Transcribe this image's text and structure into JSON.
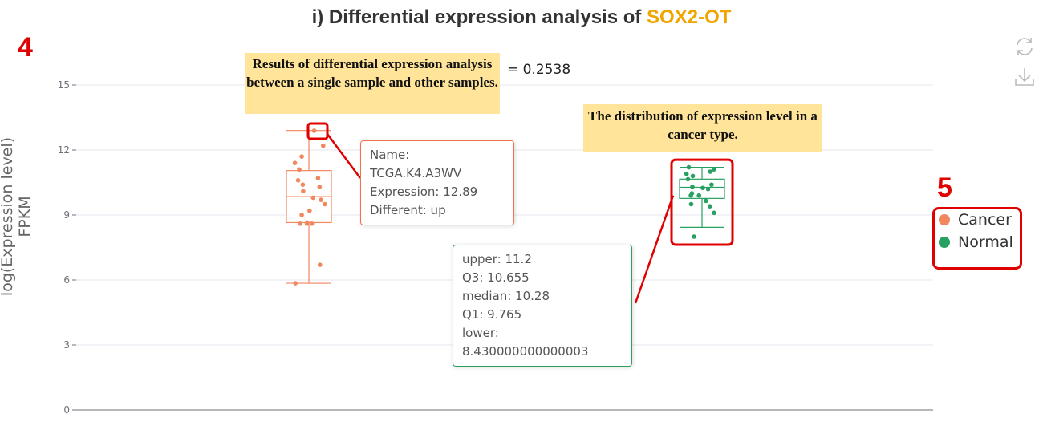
{
  "title": {
    "prefix": "i) Differential expression analysis of ",
    "gene": "SOX2-OT"
  },
  "annotations": {
    "num4": "4",
    "num5": "5",
    "box1": "Results of  differential expression analysis between a single sample and other samples.",
    "box2": "The distribution of expression level in a cancer type."
  },
  "pvalue_text": "= 0.2538",
  "toolbar": {
    "refresh_icon": "refresh-icon",
    "download_icon": "download-icon"
  },
  "tooltip_sample": {
    "name": "Name: TCGA.K4.A3WV",
    "expression": "Expression: 12.89",
    "different": "Different: up",
    "border_color": "#f0714a"
  },
  "tooltip_box": {
    "upper": "upper: 11.2",
    "q3": "Q3: 10.655",
    "median": "median: 10.28",
    "q1": "Q1: 9.765",
    "lower": "lower: 8.430000000000003",
    "border_color": "#2e9e5b"
  },
  "chart_data": {
    "type": "box",
    "title": "i) Differential expression analysis of SOX2-OT",
    "ylabel": "log(Expression level) FPKM",
    "ylim": [
      0,
      15
    ],
    "yticks": [
      "0",
      "3",
      "6",
      "9",
      "12",
      "15"
    ],
    "legend_position": "right",
    "series": [
      {
        "name": "Cancer",
        "color": "#f0875e",
        "box": {
          "lower": 5.85,
          "q1": 8.65,
          "median": 9.85,
          "q3": 11.05,
          "upper": 12.9
        },
        "points": [
          12.89,
          12.2,
          11.7,
          11.4,
          11.1,
          10.7,
          10.6,
          10.4,
          10.3,
          10.1,
          9.8,
          9.7,
          9.5,
          9.2,
          9.0,
          8.65,
          8.6,
          8.6,
          8.6,
          6.7,
          5.85
        ]
      },
      {
        "name": "Normal",
        "color": "#27a061",
        "box": {
          "lower": 8.43,
          "q1": 9.765,
          "median": 10.28,
          "q3": 10.655,
          "upper": 11.2
        },
        "points": [
          11.2,
          11.1,
          11.0,
          10.9,
          10.8,
          10.65,
          10.4,
          10.3,
          10.25,
          10.2,
          10.0,
          9.9,
          9.9,
          9.65,
          9.5,
          9.4,
          9.1,
          8.0
        ]
      }
    ]
  }
}
